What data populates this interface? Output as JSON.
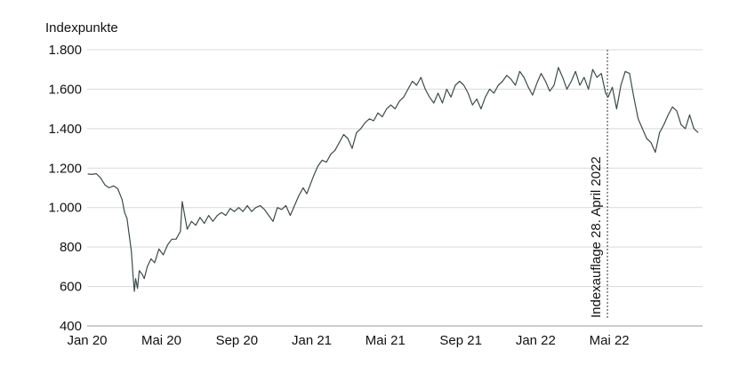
{
  "chart_data": {
    "type": "line",
    "title": "",
    "ylabel": "Indexpunkte",
    "xlabel": "",
    "ylim": [
      400,
      1800
    ],
    "xlim": [
      "2020-01-01",
      "2022-09-30"
    ],
    "grid": true,
    "yticks": [
      {
        "value": 400,
        "label": "400"
      },
      {
        "value": 600,
        "label": "600"
      },
      {
        "value": 800,
        "label": "800"
      },
      {
        "value": 1000,
        "label": "1.000"
      },
      {
        "value": 1200,
        "label": "1.200"
      },
      {
        "value": 1400,
        "label": "1.400"
      },
      {
        "value": 1600,
        "label": "1.600"
      },
      {
        "value": 1800,
        "label": "1.800"
      }
    ],
    "xticks": [
      {
        "date": "2020-01-01",
        "label": "Jan 20"
      },
      {
        "date": "2020-05-01",
        "label": "Mai 20"
      },
      {
        "date": "2020-09-01",
        "label": "Sep 20"
      },
      {
        "date": "2021-01-01",
        "label": "Jan 21"
      },
      {
        "date": "2021-05-01",
        "label": "Mai 21"
      },
      {
        "date": "2021-09-01",
        "label": "Sep 21"
      },
      {
        "date": "2022-01-01",
        "label": "Jan 22"
      },
      {
        "date": "2022-05-01",
        "label": "Mai 22"
      }
    ],
    "annotation": {
      "date": "2022-04-28",
      "label": "Indexauflage 28. April 2022"
    },
    "series": [
      {
        "color": "#3d4a4a",
        "points": [
          [
            "2020-01-02",
            1170
          ],
          [
            "2020-01-09",
            1168
          ],
          [
            "2020-01-16",
            1172
          ],
          [
            "2020-01-23",
            1150
          ],
          [
            "2020-01-30",
            1115
          ],
          [
            "2020-02-06",
            1100
          ],
          [
            "2020-02-13",
            1110
          ],
          [
            "2020-02-20",
            1095
          ],
          [
            "2020-02-27",
            1040
          ],
          [
            "2020-03-02",
            975
          ],
          [
            "2020-03-06",
            945
          ],
          [
            "2020-03-10",
            850
          ],
          [
            "2020-03-13",
            780
          ],
          [
            "2020-03-16",
            650
          ],
          [
            "2020-03-18",
            575
          ],
          [
            "2020-03-20",
            640
          ],
          [
            "2020-03-23",
            590
          ],
          [
            "2020-03-26",
            680
          ],
          [
            "2020-03-31",
            660
          ],
          [
            "2020-04-03",
            640
          ],
          [
            "2020-04-08",
            700
          ],
          [
            "2020-04-14",
            740
          ],
          [
            "2020-04-20",
            720
          ],
          [
            "2020-04-27",
            790
          ],
          [
            "2020-05-04",
            760
          ],
          [
            "2020-05-11",
            810
          ],
          [
            "2020-05-18",
            840
          ],
          [
            "2020-05-25",
            840
          ],
          [
            "2020-06-01",
            880
          ],
          [
            "2020-06-04",
            1030
          ],
          [
            "2020-06-08",
            960
          ],
          [
            "2020-06-12",
            890
          ],
          [
            "2020-06-19",
            930
          ],
          [
            "2020-06-26",
            910
          ],
          [
            "2020-07-03",
            950
          ],
          [
            "2020-07-10",
            920
          ],
          [
            "2020-07-17",
            960
          ],
          [
            "2020-07-24",
            930
          ],
          [
            "2020-07-31",
            960
          ],
          [
            "2020-08-07",
            975
          ],
          [
            "2020-08-14",
            960
          ],
          [
            "2020-08-21",
            995
          ],
          [
            "2020-08-28",
            980
          ],
          [
            "2020-09-04",
            1000
          ],
          [
            "2020-09-11",
            980
          ],
          [
            "2020-09-18",
            1010
          ],
          [
            "2020-09-25",
            980
          ],
          [
            "2020-10-02",
            1000
          ],
          [
            "2020-10-09",
            1010
          ],
          [
            "2020-10-16",
            990
          ],
          [
            "2020-10-23",
            960
          ],
          [
            "2020-10-30",
            930
          ],
          [
            "2020-11-06",
            1000
          ],
          [
            "2020-11-13",
            990
          ],
          [
            "2020-11-20",
            1010
          ],
          [
            "2020-11-27",
            960
          ],
          [
            "2020-12-04",
            1010
          ],
          [
            "2020-12-11",
            1060
          ],
          [
            "2020-12-18",
            1100
          ],
          [
            "2020-12-24",
            1070
          ],
          [
            "2021-01-04",
            1160
          ],
          [
            "2021-01-11",
            1210
          ],
          [
            "2021-01-18",
            1240
          ],
          [
            "2021-01-25",
            1230
          ],
          [
            "2021-02-01",
            1270
          ],
          [
            "2021-02-08",
            1290
          ],
          [
            "2021-02-15",
            1330
          ],
          [
            "2021-02-22",
            1370
          ],
          [
            "2021-03-01",
            1350
          ],
          [
            "2021-03-08",
            1300
          ],
          [
            "2021-03-15",
            1380
          ],
          [
            "2021-03-22",
            1400
          ],
          [
            "2021-03-29",
            1430
          ],
          [
            "2021-04-05",
            1450
          ],
          [
            "2021-04-12",
            1440
          ],
          [
            "2021-04-19",
            1480
          ],
          [
            "2021-04-26",
            1460
          ],
          [
            "2021-05-03",
            1500
          ],
          [
            "2021-05-10",
            1520
          ],
          [
            "2021-05-17",
            1500
          ],
          [
            "2021-05-24",
            1540
          ],
          [
            "2021-05-31",
            1560
          ],
          [
            "2021-06-07",
            1600
          ],
          [
            "2021-06-14",
            1640
          ],
          [
            "2021-06-21",
            1620
          ],
          [
            "2021-06-28",
            1660
          ],
          [
            "2021-07-05",
            1600
          ],
          [
            "2021-07-12",
            1560
          ],
          [
            "2021-07-19",
            1530
          ],
          [
            "2021-07-26",
            1580
          ],
          [
            "2021-08-02",
            1530
          ],
          [
            "2021-08-09",
            1600
          ],
          [
            "2021-08-16",
            1560
          ],
          [
            "2021-08-23",
            1620
          ],
          [
            "2021-08-30",
            1640
          ],
          [
            "2021-09-06",
            1620
          ],
          [
            "2021-09-13",
            1580
          ],
          [
            "2021-09-20",
            1520
          ],
          [
            "2021-09-27",
            1550
          ],
          [
            "2021-10-04",
            1500
          ],
          [
            "2021-10-11",
            1560
          ],
          [
            "2021-10-18",
            1600
          ],
          [
            "2021-10-25",
            1580
          ],
          [
            "2021-11-01",
            1620
          ],
          [
            "2021-11-08",
            1640
          ],
          [
            "2021-11-15",
            1670
          ],
          [
            "2021-11-22",
            1650
          ],
          [
            "2021-11-29",
            1620
          ],
          [
            "2021-12-06",
            1690
          ],
          [
            "2021-12-13",
            1660
          ],
          [
            "2021-12-20",
            1610
          ],
          [
            "2021-12-27",
            1570
          ],
          [
            "2022-01-03",
            1630
          ],
          [
            "2022-01-10",
            1680
          ],
          [
            "2022-01-17",
            1640
          ],
          [
            "2022-01-24",
            1590
          ],
          [
            "2022-01-31",
            1620
          ],
          [
            "2022-02-07",
            1710
          ],
          [
            "2022-02-14",
            1660
          ],
          [
            "2022-02-21",
            1600
          ],
          [
            "2022-02-28",
            1640
          ],
          [
            "2022-03-07",
            1690
          ],
          [
            "2022-03-14",
            1620
          ],
          [
            "2022-03-21",
            1660
          ],
          [
            "2022-03-28",
            1600
          ],
          [
            "2022-04-04",
            1700
          ],
          [
            "2022-04-11",
            1660
          ],
          [
            "2022-04-18",
            1680
          ],
          [
            "2022-04-25",
            1580
          ],
          [
            "2022-04-29",
            1560
          ],
          [
            "2022-05-06",
            1610
          ],
          [
            "2022-05-13",
            1500
          ],
          [
            "2022-05-20",
            1620
          ],
          [
            "2022-05-27",
            1690
          ],
          [
            "2022-06-03",
            1680
          ],
          [
            "2022-06-10",
            1560
          ],
          [
            "2022-06-17",
            1450
          ],
          [
            "2022-06-24",
            1400
          ],
          [
            "2022-07-01",
            1350
          ],
          [
            "2022-07-08",
            1330
          ],
          [
            "2022-07-15",
            1280
          ],
          [
            "2022-07-22",
            1380
          ],
          [
            "2022-07-29",
            1420
          ],
          [
            "2022-08-05",
            1470
          ],
          [
            "2022-08-12",
            1510
          ],
          [
            "2022-08-19",
            1490
          ],
          [
            "2022-08-26",
            1420
          ],
          [
            "2022-09-02",
            1400
          ],
          [
            "2022-09-09",
            1470
          ],
          [
            "2022-09-16",
            1400
          ],
          [
            "2022-09-23",
            1380
          ]
        ]
      }
    ]
  }
}
